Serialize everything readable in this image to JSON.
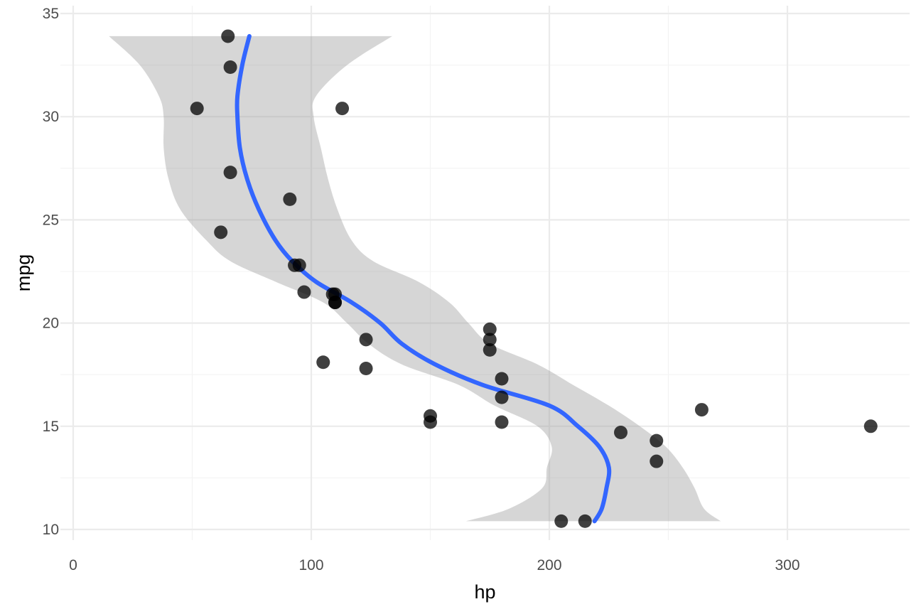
{
  "chart_data": {
    "type": "scatter",
    "title": "",
    "xlabel": "hp",
    "ylabel": "mpg",
    "xlim": [
      0,
      350
    ],
    "ylim": [
      10,
      35
    ],
    "x_ticks": [
      0,
      100,
      200,
      300
    ],
    "y_ticks": [
      10,
      15,
      20,
      25,
      30,
      35
    ],
    "x_tick_labels": [
      "0",
      "100",
      "200",
      "300"
    ],
    "y_tick_labels": [
      "10",
      "15",
      "20",
      "25",
      "30",
      "35"
    ],
    "grid": true,
    "legend": "none",
    "colors": {
      "points": "#000000",
      "point_opacity": 0.75,
      "smooth_line": "#3366FF",
      "ribbon": "#999999",
      "ribbon_opacity": 0.4
    },
    "points": [
      {
        "x": 110,
        "y": 21.0
      },
      {
        "x": 110,
        "y": 21.0
      },
      {
        "x": 93,
        "y": 22.8
      },
      {
        "x": 110,
        "y": 21.4
      },
      {
        "x": 175,
        "y": 18.7
      },
      {
        "x": 105,
        "y": 18.1
      },
      {
        "x": 245,
        "y": 14.3
      },
      {
        "x": 62,
        "y": 24.4
      },
      {
        "x": 95,
        "y": 22.8
      },
      {
        "x": 123,
        "y": 19.2
      },
      {
        "x": 123,
        "y": 17.8
      },
      {
        "x": 180,
        "y": 16.4
      },
      {
        "x": 180,
        "y": 17.3
      },
      {
        "x": 180,
        "y": 15.2
      },
      {
        "x": 205,
        "y": 10.4
      },
      {
        "x": 215,
        "y": 10.4
      },
      {
        "x": 230,
        "y": 14.7
      },
      {
        "x": 66,
        "y": 32.4
      },
      {
        "x": 52,
        "y": 30.4
      },
      {
        "x": 65,
        "y": 33.9
      },
      {
        "x": 97,
        "y": 21.5
      },
      {
        "x": 150,
        "y": 15.5
      },
      {
        "x": 150,
        "y": 15.2
      },
      {
        "x": 245,
        "y": 13.3
      },
      {
        "x": 175,
        "y": 19.2
      },
      {
        "x": 66,
        "y": 27.3
      },
      {
        "x": 91,
        "y": 26.0
      },
      {
        "x": 113,
        "y": 30.4
      },
      {
        "x": 264,
        "y": 15.8
      },
      {
        "x": 175,
        "y": 19.7
      },
      {
        "x": 335,
        "y": 15.0
      },
      {
        "x": 109,
        "y": 21.4
      }
    ],
    "smooth": [
      {
        "y": 33.9,
        "x": 74,
        "lo": 15,
        "hi": 134
      },
      {
        "y": 32.5,
        "x": 71,
        "lo": 28,
        "hi": 115
      },
      {
        "y": 31.0,
        "x": 69,
        "lo": 36,
        "hi": 102
      },
      {
        "y": 30.0,
        "x": 69,
        "lo": 38,
        "hi": 101
      },
      {
        "y": 28.5,
        "x": 70,
        "lo": 38,
        "hi": 104
      },
      {
        "y": 27.0,
        "x": 73,
        "lo": 40,
        "hi": 107
      },
      {
        "y": 25.5,
        "x": 78,
        "lo": 45,
        "hi": 111
      },
      {
        "y": 24.0,
        "x": 85,
        "lo": 56,
        "hi": 117
      },
      {
        "y": 23.0,
        "x": 92,
        "lo": 66,
        "hi": 126
      },
      {
        "y": 22.0,
        "x": 102,
        "lo": 85,
        "hi": 145
      },
      {
        "y": 21.0,
        "x": 117,
        "lo": 105,
        "hi": 158
      },
      {
        "y": 20.0,
        "x": 129,
        "lo": 115,
        "hi": 166
      },
      {
        "y": 19.0,
        "x": 138,
        "lo": 124,
        "hi": 175
      },
      {
        "y": 18.0,
        "x": 152,
        "lo": 138,
        "hi": 195
      },
      {
        "y": 17.0,
        "x": 172,
        "lo": 162,
        "hi": 210
      },
      {
        "y": 16.0,
        "x": 200,
        "lo": 177,
        "hi": 225
      },
      {
        "y": 15.0,
        "x": 212,
        "lo": 195,
        "hi": 238
      },
      {
        "y": 14.0,
        "x": 221,
        "lo": 201,
        "hi": 249
      },
      {
        "y": 13.0,
        "x": 225,
        "lo": 199,
        "hi": 256
      },
      {
        "y": 12.0,
        "x": 224,
        "lo": 197,
        "hi": 261
      },
      {
        "y": 11.0,
        "x": 222,
        "lo": 183,
        "hi": 265
      },
      {
        "y": 10.4,
        "x": 219,
        "lo": 165,
        "hi": 272
      }
    ]
  }
}
